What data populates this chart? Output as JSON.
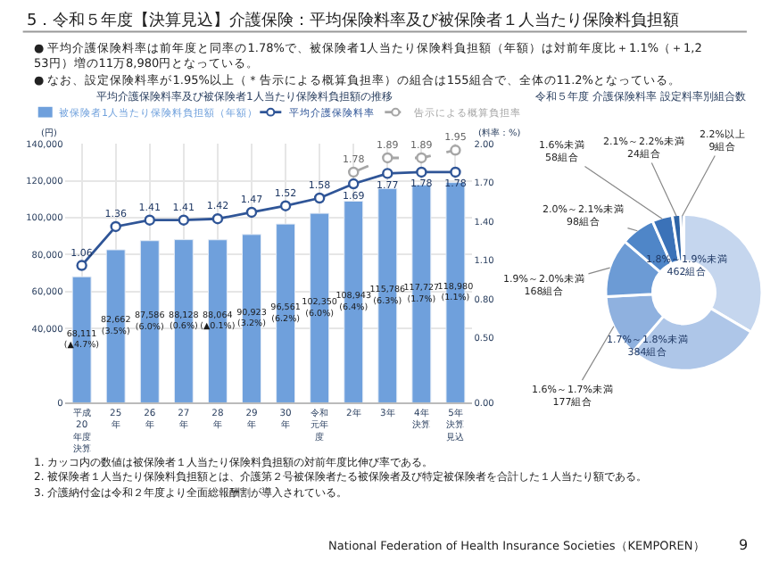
{
  "chart_data": [
    {
      "type": "bar",
      "title": "平均介護保険料率及び被保険者1人当たり保険料負担額の推移",
      "ylabel": "(円)",
      "y2label": "(料率：%)",
      "categories": [
        "平成20年度決算",
        "25年",
        "26年",
        "27年",
        "28年",
        "29年",
        "30年",
        "令和元年度",
        "2年",
        "3年",
        "4年決算",
        "5年決算見込"
      ],
      "series": [
        {
          "name": "被保険者1人当たり保険料負担額（年額）",
          "type": "bar",
          "color": "#6fa0dc",
          "values": [
            68111,
            82662,
            87586,
            88128,
            88064,
            90923,
            96561,
            102350,
            108943,
            115786,
            117727,
            118980
          ],
          "value_labels": [
            "68,111\n(▲4.7%)",
            "82,662\n(3.5%)",
            "87,586\n(6.0%)",
            "88,128\n(0.6%)",
            "88,064\n(▲0.1%)",
            "90,923\n(3.2%)",
            "96,561\n(6.2%)",
            "102,350\n(6.0%)",
            "108,943\n(6.4%)",
            "115,786\n(6.3%)",
            "117,727\n(1.7%)",
            "118,980\n(1.1%)"
          ]
        },
        {
          "name": "平均介護保険料率",
          "type": "line",
          "axis": "y2",
          "color": "#2f5597",
          "line_style": "solid",
          "values": [
            1.06,
            1.36,
            1.41,
            1.41,
            1.42,
            1.47,
            1.52,
            1.58,
            1.69,
            1.77,
            1.78,
            1.78
          ],
          "value_labels": [
            "1.06",
            "1.36",
            "1.41",
            "1.41",
            "1.42",
            "1.47",
            "1.52",
            "1.58",
            "1.69",
            "1.77",
            "1.78",
            "1.78"
          ]
        },
        {
          "name": "告示による概算負担率",
          "type": "line",
          "axis": "y2",
          "color": "#a6a6a6",
          "line_style": "dashed",
          "values": [
            null,
            null,
            null,
            null,
            null,
            null,
            null,
            null,
            1.78,
            1.89,
            1.89,
            1.95
          ],
          "value_labels": [
            null,
            null,
            null,
            null,
            null,
            null,
            null,
            null,
            "1.78",
            "1.89",
            "1.89",
            "1.95"
          ]
        }
      ],
      "ylim": [
        0,
        140000
      ],
      "yticks": [
        {
          "value": 0,
          "label": "0"
        },
        {
          "value": 40000,
          "label": "40,000"
        },
        {
          "value": 60000,
          "label": "60,000"
        },
        {
          "value": 80000,
          "label": "80,000"
        },
        {
          "value": 100000,
          "label": "100,000"
        },
        {
          "value": 120000,
          "label": "120,000"
        },
        {
          "value": 140000,
          "label": "140,000"
        }
      ],
      "y2lim": [
        0,
        2.0
      ],
      "y2ticks": [
        {
          "value": 0,
          "label": "0.00"
        },
        {
          "value": 0.5,
          "label": "0.50"
        },
        {
          "value": 0.8,
          "label": "0.80"
        },
        {
          "value": 1.1,
          "label": "1.10"
        },
        {
          "value": 1.4,
          "label": "1.40"
        },
        {
          "value": 1.7,
          "label": "1.70"
        },
        {
          "value": 2.0,
          "label": "2.00"
        }
      ],
      "grid": true,
      "legend": "top",
      "marker": "circle",
      "annotations": [
        "5．令和５年度【決算見込】介護保険：平均保険料率及び被保険者１人当たり保険料負担額",
        "● 平均介護保険料率は前年度と同率の1.78%で、被保険者1人当たり保険料負担額（年額）は対前年度比＋1.1%（＋1,253円）増の11万8,980円となっている。",
        "● なお、設定保険料率が1.95%以上（＊告示による概算負担率）の組合は155組合で、全体の11.2%となっている。",
        "1. カッコ内の数値は被保険者１人当たり保険料負担額の対前年度比伸び率である。",
        "2. 被保険者１人当たり保険料負担額とは、介護第２号被保険者たる被保険者及び特定被保険者を合計した１人当たり額である。",
        "3. 介護納付金は令和２年度より全面総報酬割が導入されている。",
        "National Federation of Health Insurance Societies（KEMPOREN）",
        "9"
      ]
    },
    {
      "type": "donut",
      "title": "令和５年度 介護保険料率 設定料率別組合数",
      "categories": [
        "1.8%～1.9%未満",
        "1.7%～1.8%未満",
        "1.6%～1.7%未満",
        "1.9%～2.0%未満",
        "2.0%～2.1%未満",
        "1.6%未満",
        "2.1%～2.2%未満",
        "2.2%以上"
      ],
      "values": [
        462,
        384,
        177,
        168,
        98,
        58,
        24,
        9
      ],
      "value_labels": [
        "462組合",
        "384組合",
        "177組合",
        "168組合",
        "98組合",
        "58組合",
        "24組合",
        "9組合"
      ],
      "colors": [
        "#c5d6ee",
        "#aec6e8",
        "#8fb1df",
        "#6c9bd5",
        "#4f86c8",
        "#3b72b8",
        "#2e64a6",
        "#1f4e8c"
      ]
    }
  ]
}
